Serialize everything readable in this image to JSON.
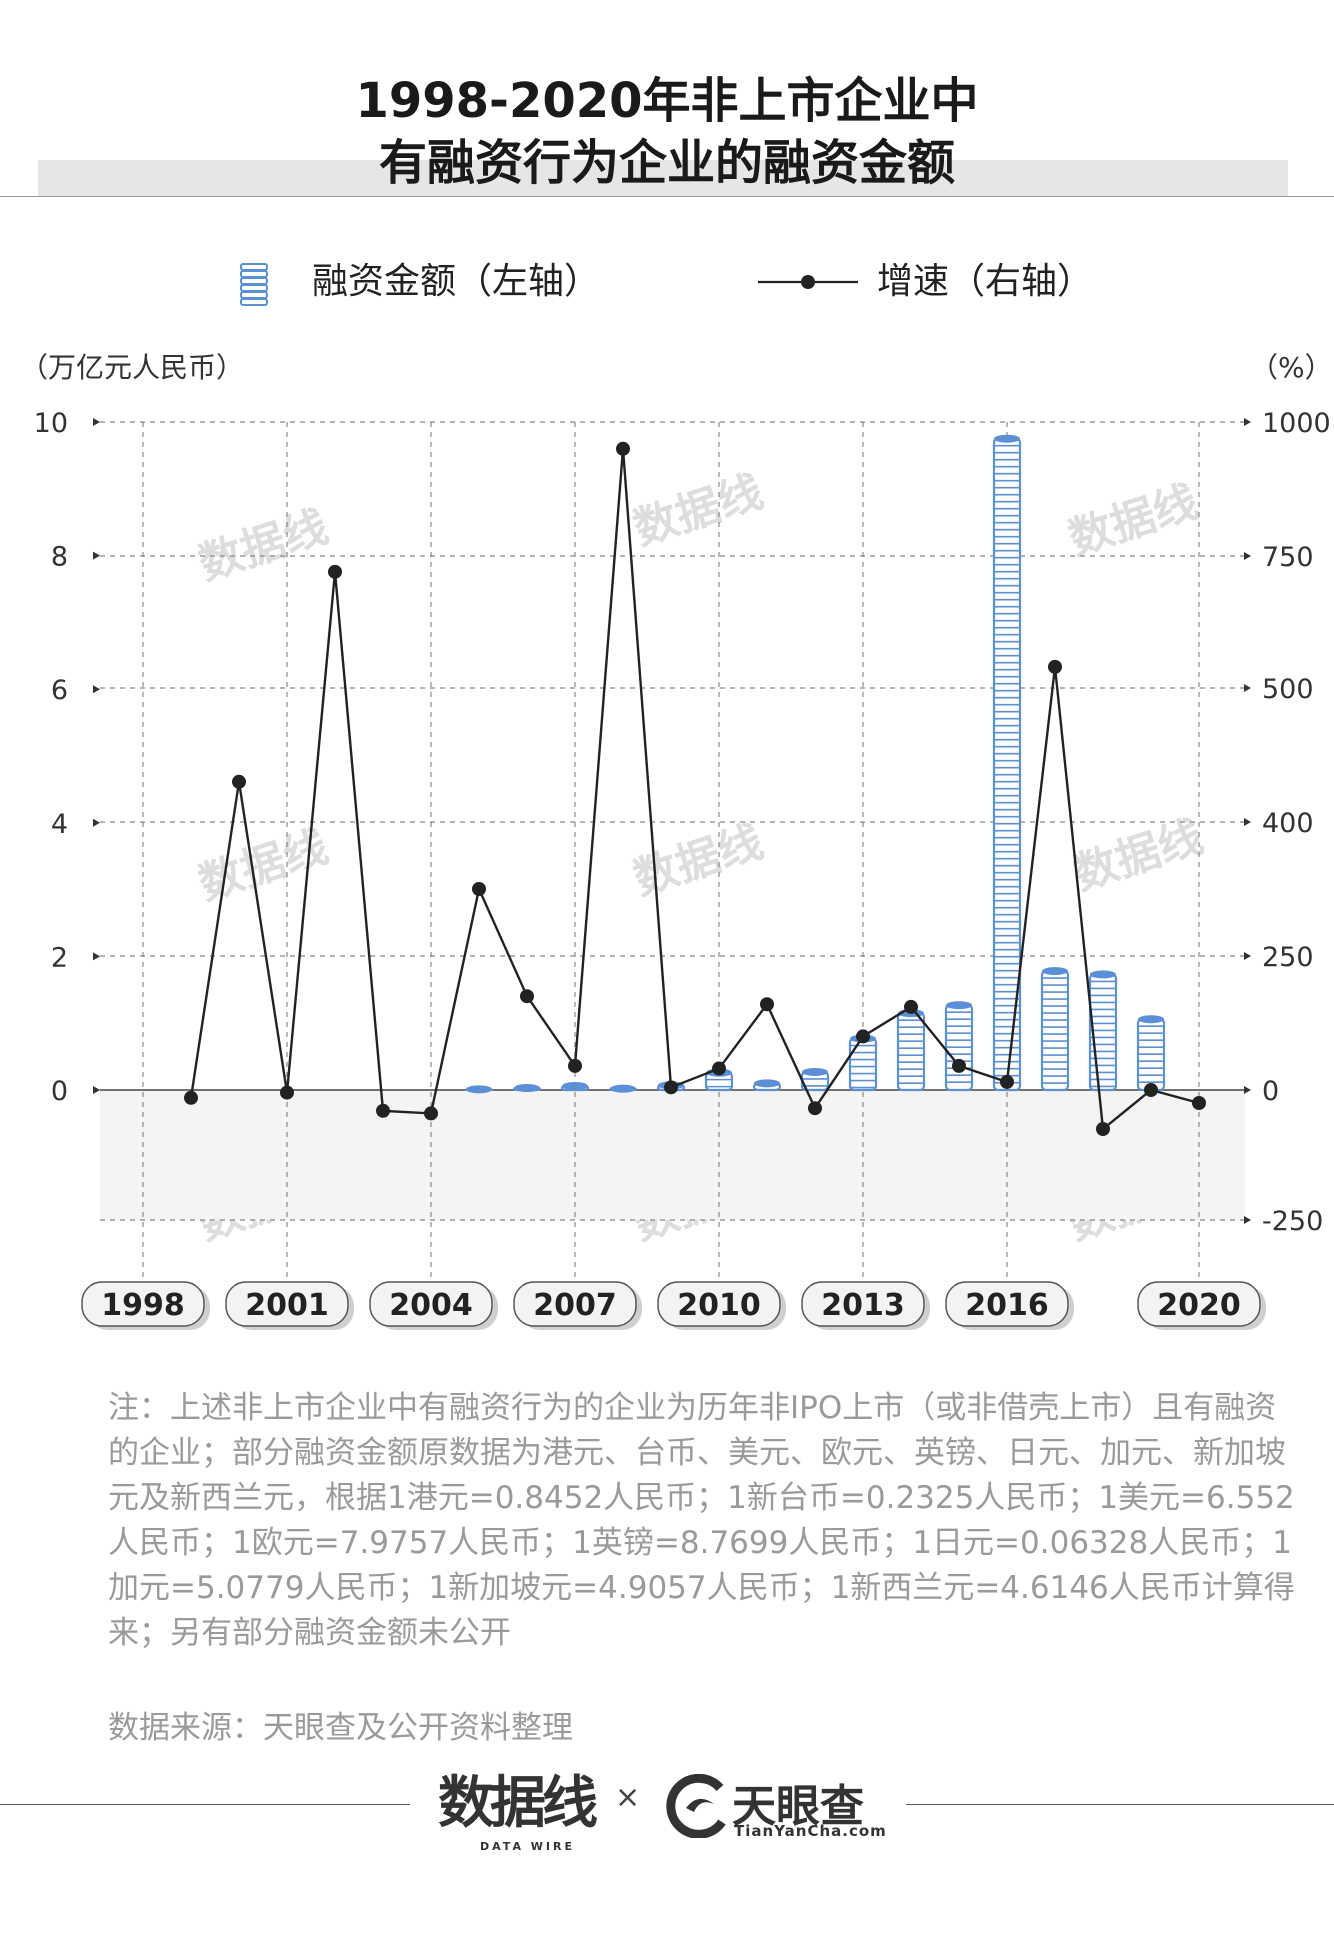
{
  "title_line1": "1998-2020年非上市企业中",
  "title_line2": "有融资行为企业的融资金额",
  "legend": {
    "bar_label": "融资金额（左轴）",
    "line_label": "增速（右轴）"
  },
  "left_unit": "（万亿元人民币）",
  "right_unit": "（%）",
  "colors": {
    "bar": "#5b8fd6",
    "line": "#222222",
    "negative_zone": "#f4f4f4"
  },
  "chart_data": {
    "type": "bar+line",
    "x": [
      1998,
      1999,
      2000,
      2001,
      2002,
      2003,
      2004,
      2005,
      2006,
      2007,
      2008,
      2009,
      2010,
      2011,
      2012,
      2013,
      2014,
      2015,
      2016,
      2017,
      2018,
      2019,
      2020
    ],
    "x_tick_labels": [
      "1998",
      "2001",
      "2004",
      "2007",
      "2010",
      "2013",
      "2016",
      "2020"
    ],
    "series": [
      {
        "name": "融资金额（左轴）",
        "axis": "left",
        "type": "bar",
        "values": [
          0,
          0,
          0,
          0,
          0,
          0,
          0,
          0.01,
          0.03,
          0.06,
          0.02,
          0.07,
          0.26,
          0.1,
          0.27,
          0.77,
          1.15,
          1.27,
          9.75,
          1.78,
          1.73,
          1.06,
          0
        ]
      },
      {
        "name": "增速（右轴）",
        "axis": "right",
        "type": "line",
        "values": [
          null,
          -15,
          430,
          -5,
          720,
          -40,
          -45,
          325,
          175,
          45,
          950,
          5,
          40,
          160,
          -35,
          100,
          155,
          45,
          15,
          540,
          -75,
          0,
          -25
        ]
      }
    ],
    "left_axis": {
      "ticks": [
        0,
        2,
        4,
        6,
        8,
        10
      ],
      "range": [
        -1.94,
        10
      ]
    },
    "right_axis": {
      "tick_labels": [
        "-250",
        "0",
        "250",
        "400",
        "500",
        "750",
        "1000"
      ]
    },
    "grid": "dashed"
  },
  "note": "注：上述非上市企业中有融资行为的企业为历年非IPO上市（或非借壳上市）且有融资的企业；部分融资金额原数据为港元、台币、美元、欧元、英镑、日元、加元、新加坡元及新西兰元，根据1港元=0.8452人民币；1新台币=0.2325人民币；1美元=6.552人民币；1欧元=7.9757人民币；1英镑=8.7699人民币；1日元=0.06328人民币；1加元=5.0779人民币；1新加坡元=4.9057人民币；1新西兰元=4.6146人民币计算得来；另有部分融资金额未公开",
  "source": "数据来源：天眼查及公开资料整理",
  "logos": {
    "datawire_cn": "数据线",
    "datawire_en": "DATA WIRE",
    "times": "×",
    "tianyancha_cn": "天眼查",
    "tianyancha_en": "TianYanCha.com"
  }
}
